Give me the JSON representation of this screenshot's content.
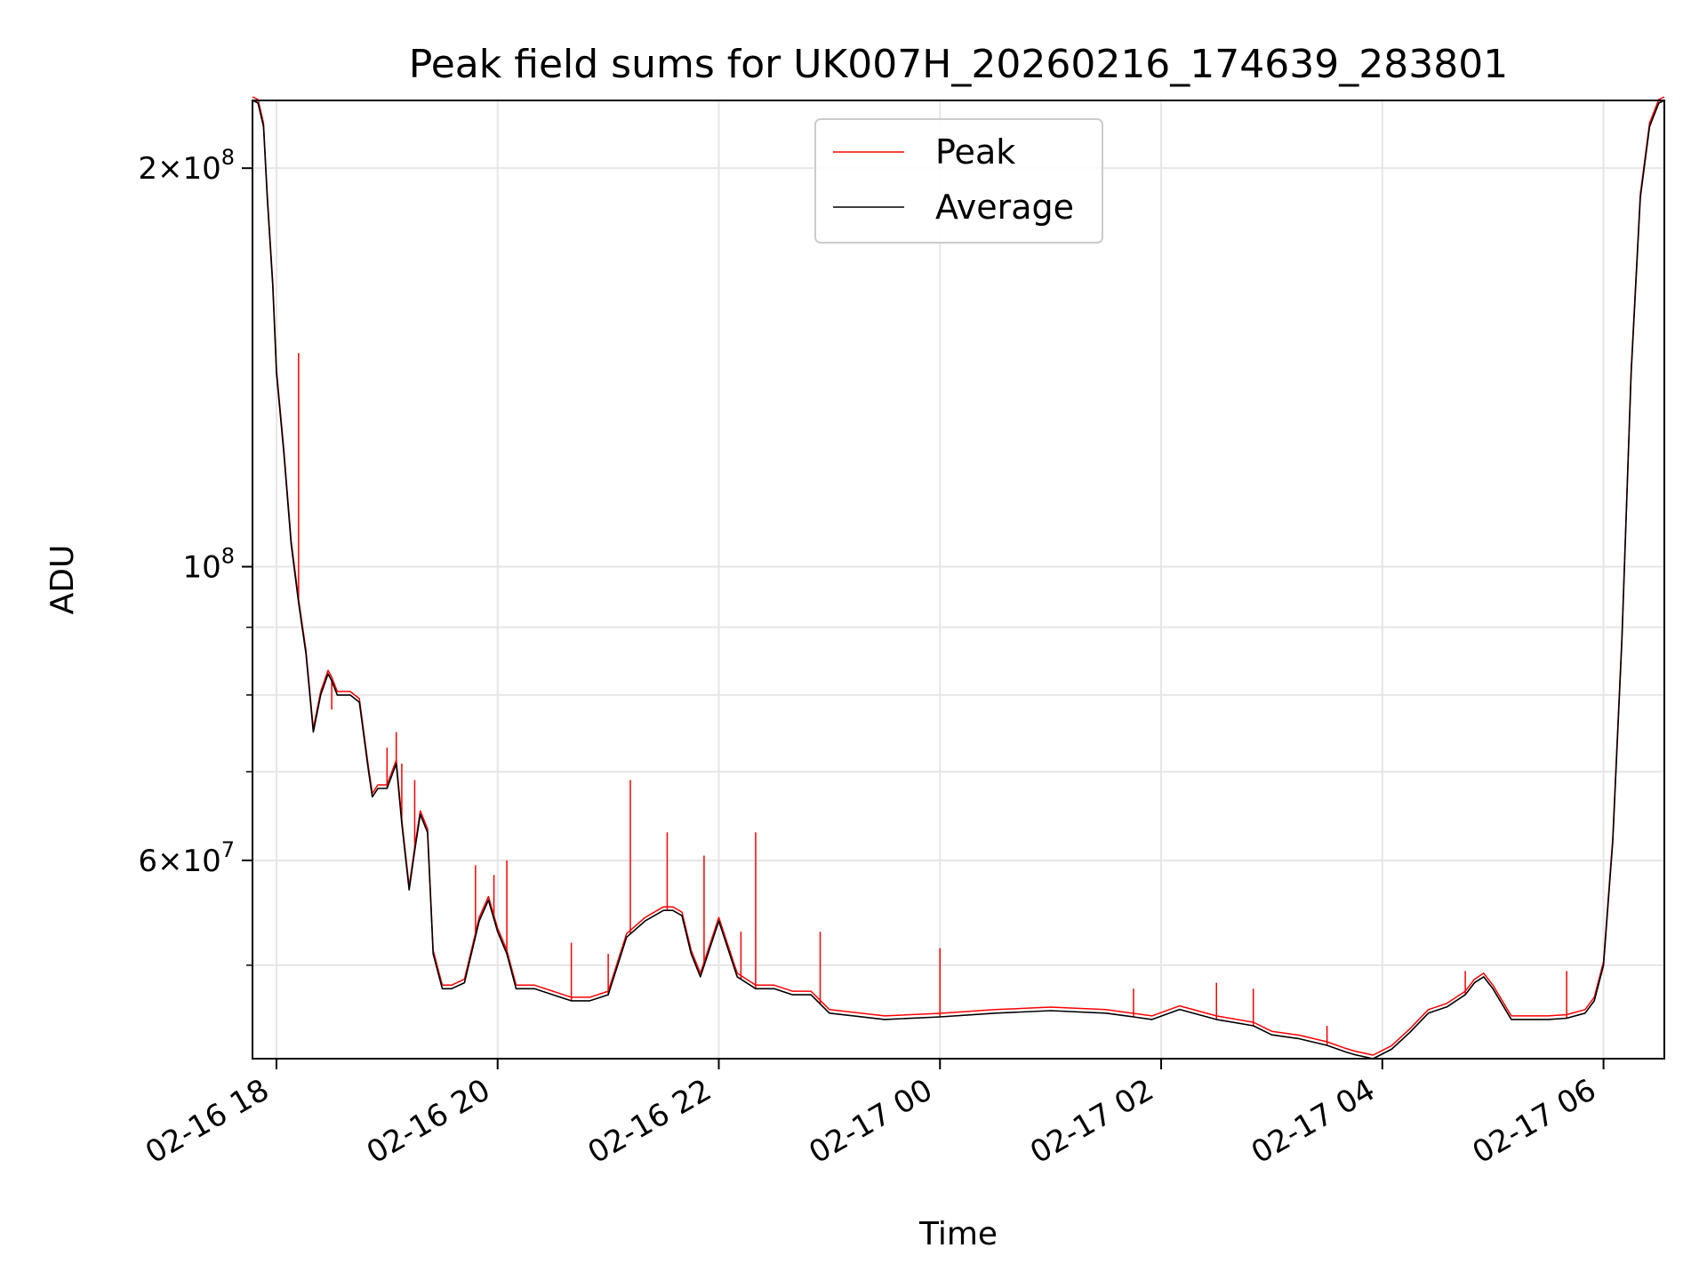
{
  "chart_data": {
    "type": "line",
    "title": "Peak field sums for UK007H_20260216_174639_283801",
    "xlabel": "Time",
    "ylabel": "ADU",
    "yscale": "log",
    "x_unit": "hours",
    "xlim": [
      "02-16 17:47",
      "02-17 06:33"
    ],
    "ylim": [
      42500000,
      225000000
    ],
    "grid": true,
    "legend_position": "top-center",
    "x_ticks": [
      {
        "label": "02-16 18",
        "value": "02-16 18:00"
      },
      {
        "label": "02-16 20",
        "value": "02-16 20:00"
      },
      {
        "label": "02-16 22",
        "value": "02-16 22:00"
      },
      {
        "label": "02-17 00",
        "value": "02-17 00:00"
      },
      {
        "label": "02-17 02",
        "value": "02-17 02:00"
      },
      {
        "label": "02-17 04",
        "value": "02-17 04:00"
      },
      {
        "label": "02-17 06",
        "value": "02-17 06:00"
      }
    ],
    "y_ticks": [
      {
        "mant": "2",
        "exp": "8",
        "value": 200000000
      },
      {
        "mant": "",
        "exp": "8",
        "value": 100000000
      },
      {
        "mant": "6",
        "exp": "7",
        "value": 60000000
      }
    ],
    "y_minor_ticks": [
      50000000,
      70000000,
      80000000,
      90000000
    ],
    "series": [
      {
        "name": "Average",
        "color": "#000000",
        "x": [
          "02-16 17:47",
          "02-16 17:50",
          "02-16 17:53",
          "02-16 17:55",
          "02-16 17:58",
          "02-16 18:00",
          "02-16 18:04",
          "02-16 18:08",
          "02-16 18:12",
          "02-16 18:16",
          "02-16 18:20",
          "02-16 18:24",
          "02-16 18:28",
          "02-16 18:30",
          "02-16 18:33",
          "02-16 18:36",
          "02-16 18:40",
          "02-16 18:45",
          "02-16 18:50",
          "02-16 18:52",
          "02-16 18:55",
          "02-16 19:00",
          "02-16 19:05",
          "02-16 19:08",
          "02-16 19:12",
          "02-16 19:15",
          "02-16 19:18",
          "02-16 19:22",
          "02-16 19:25",
          "02-16 19:30",
          "02-16 19:35",
          "02-16 19:42",
          "02-16 19:50",
          "02-16 19:55",
          "02-16 20:00",
          "02-16 20:05",
          "02-16 20:10",
          "02-16 20:20",
          "02-16 20:30",
          "02-16 20:40",
          "02-16 20:50",
          "02-16 21:00",
          "02-16 21:10",
          "02-16 21:20",
          "02-16 21:30",
          "02-16 21:35",
          "02-16 21:40",
          "02-16 21:45",
          "02-16 21:50",
          "02-16 22:00",
          "02-16 22:10",
          "02-16 22:20",
          "02-16 22:30",
          "02-16 22:40",
          "02-16 22:50",
          "02-16 23:00",
          "02-16 23:30",
          "02-17 00:00",
          "02-17 00:30",
          "02-17 01:00",
          "02-17 01:30",
          "02-17 01:45",
          "02-17 01:55",
          "02-17 02:10",
          "02-17 02:30",
          "02-17 02:50",
          "02-17 03:00",
          "02-17 03:15",
          "02-17 03:30",
          "02-17 03:40",
          "02-17 03:45",
          "02-17 03:55",
          "02-17 04:05",
          "02-17 04:15",
          "02-17 04:25",
          "02-17 04:35",
          "02-17 04:45",
          "02-17 04:50",
          "02-17 04:55",
          "02-17 05:00",
          "02-17 05:10",
          "02-17 05:20",
          "02-17 05:30",
          "02-17 05:40",
          "02-17 05:50",
          "02-17 05:55",
          "02-17 06:00",
          "02-17 06:05",
          "02-17 06:10",
          "02-17 06:15",
          "02-17 06:20",
          "02-17 06:25",
          "02-17 06:30",
          "02-17 06:33"
        ],
        "values": [
          225000000,
          224000000,
          215000000,
          190000000,
          163000000,
          140000000,
          122000000,
          104000000,
          94000000,
          86000000,
          75000000,
          80000000,
          83000000,
          82000000,
          80000000,
          80000000,
          80000000,
          79000000,
          70000000,
          67000000,
          68000000,
          68000000,
          71000000,
          64000000,
          57000000,
          61000000,
          65000000,
          63000000,
          51000000,
          48000000,
          48000000,
          48500000,
          54000000,
          56000000,
          53000000,
          51000000,
          48000000,
          48000000,
          47500000,
          47000000,
          47000000,
          47500000,
          52500000,
          54000000,
          55000000,
          55000000,
          54500000,
          51000000,
          49000000,
          54000000,
          49000000,
          48000000,
          48000000,
          47500000,
          47500000,
          46000000,
          45500000,
          45700000,
          46000000,
          46200000,
          46000000,
          45700000,
          45500000,
          46300000,
          45500000,
          45000000,
          44300000,
          44000000,
          43500000,
          43000000,
          42800000,
          42500000,
          43200000,
          44500000,
          46000000,
          46500000,
          47500000,
          48500000,
          49000000,
          48000000,
          45500000,
          45500000,
          45500000,
          45600000,
          46000000,
          47000000,
          50000000,
          62000000,
          88000000,
          140000000,
          190000000,
          215000000,
          224000000,
          225000000
        ]
      },
      {
        "name": "Peak",
        "color": "#ff0000",
        "spikes": [
          {
            "x": "02-16 18:12",
            "value": 145000000
          },
          {
            "x": "02-16 18:30",
            "value": 78000000
          },
          {
            "x": "02-16 19:00",
            "value": 73000000
          },
          {
            "x": "02-16 19:05",
            "value": 75000000
          },
          {
            "x": "02-16 19:08",
            "value": 71000000
          },
          {
            "x": "02-16 19:15",
            "value": 69000000
          },
          {
            "x": "02-16 19:48",
            "value": 59500000
          },
          {
            "x": "02-16 19:58",
            "value": 58500000
          },
          {
            "x": "02-16 20:05",
            "value": 60000000
          },
          {
            "x": "02-16 20:40",
            "value": 52000000
          },
          {
            "x": "02-16 21:00",
            "value": 51000000
          },
          {
            "x": "02-16 21:12",
            "value": 69000000
          },
          {
            "x": "02-16 21:32",
            "value": 63000000
          },
          {
            "x": "02-16 21:52",
            "value": 60500000
          },
          {
            "x": "02-16 22:12",
            "value": 53000000
          },
          {
            "x": "02-16 22:20",
            "value": 63000000
          },
          {
            "x": "02-16 22:55",
            "value": 53000000
          },
          {
            "x": "02-17 00:00",
            "value": 51500000
          },
          {
            "x": "02-17 01:45",
            "value": 48000000
          },
          {
            "x": "02-17 02:30",
            "value": 48500000
          },
          {
            "x": "02-17 02:50",
            "value": 48000000
          },
          {
            "x": "02-17 03:30",
            "value": 45000000
          },
          {
            "x": "02-17 04:45",
            "value": 49500000
          },
          {
            "x": "02-17 05:40",
            "value": 49500000
          }
        ]
      }
    ]
  }
}
